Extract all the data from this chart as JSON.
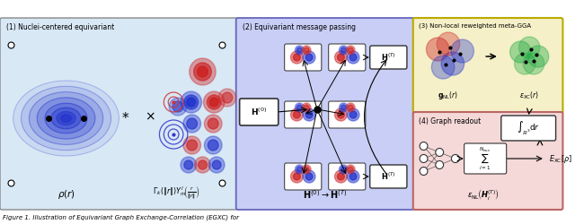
{
  "panel1_label": "(1) Nuclei-centered equivariant",
  "panel1_bg": "#d8e8f5",
  "panel1_border": "#888888",
  "panel2_label": "(2) Equivariant message passing",
  "panel2_bg": "#c8cef5",
  "panel2_border": "#6666bb",
  "panel3_label": "(3) Non-local reweighted meta-GGA",
  "panel3_bg": "#f5f0c8",
  "panel3_border": "#bbaa00",
  "panel4_label": "(4) Graph readout",
  "panel4_bg": "#f5d8d8",
  "panel4_border": "#bb6666",
  "figure_caption": "Figure 1. Illustration of Equivariant Graph Exchange-Correlation (EGXC) for",
  "bg_white": "#ffffff",
  "dot_color": "#000000",
  "blue_orb": "#2233cc",
  "red_orb": "#cc2222",
  "green_blob": "#22aa44"
}
